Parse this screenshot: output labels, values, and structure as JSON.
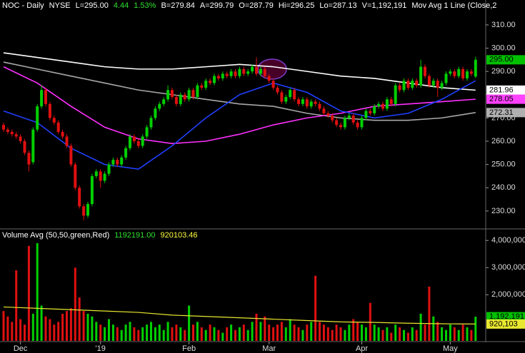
{
  "header": [
    "NOC - Daily",
    "NYSE",
    "L=295.00",
    "4.44",
    "1.53%",
    "B=279.84",
    "A=299.79",
    "O=287.79",
    "Hi=296.25",
    "Lo=287.13",
    "V=1,192,191",
    "Mov Avg 1 Line (Close,2"
  ],
  "chart_data": [
    {
      "type": "candlestick",
      "up_color": "#00d000",
      "down_color": "#e01010",
      "open": [
        267,
        265,
        264,
        263,
        262,
        260,
        255,
        251,
        265,
        275,
        282,
        276,
        270,
        268,
        264,
        262,
        258,
        250,
        240,
        232,
        228,
        233,
        245,
        247,
        243,
        246,
        250,
        252,
        250,
        253,
        257,
        262,
        260,
        258,
        262,
        266,
        270,
        274,
        276,
        278,
        282,
        279,
        276,
        280,
        278,
        282,
        279,
        284,
        283,
        286,
        285,
        288,
        287,
        289,
        288,
        290,
        288,
        291,
        289,
        290,
        292,
        289,
        291,
        288,
        286,
        283,
        281,
        277,
        279,
        282,
        278,
        276,
        278,
        275,
        277,
        276,
        274,
        272,
        271,
        269,
        267,
        266,
        270,
        271,
        268,
        266,
        270,
        273,
        272,
        275,
        276,
        274,
        278,
        276,
        284,
        282,
        286,
        283,
        286,
        284,
        292,
        288,
        284,
        286,
        283,
        285,
        289,
        290,
        288,
        291,
        287,
        290,
        287.79
      ],
      "high": [
        268,
        266,
        265,
        264,
        263,
        261,
        256,
        266,
        276,
        284,
        283,
        277,
        271,
        269,
        265,
        263,
        259,
        251,
        241,
        233,
        234,
        246,
        248,
        248,
        247,
        251,
        253,
        253,
        254,
        258,
        263,
        263,
        261,
        263,
        267,
        271,
        275,
        277,
        279,
        284,
        283,
        280,
        281,
        281,
        283,
        283,
        285,
        285,
        287,
        287,
        289,
        289,
        290,
        290,
        291,
        291,
        292,
        292,
        291,
        293,
        296,
        292,
        292,
        289,
        287,
        284,
        282,
        280,
        283,
        283,
        279,
        279,
        279,
        278,
        278,
        277,
        275,
        273,
        272,
        270,
        268,
        271,
        272,
        272,
        269,
        271,
        274,
        274,
        276,
        277,
        277,
        279,
        279,
        285,
        285,
        287,
        287,
        287,
        287,
        295,
        293,
        289,
        287,
        287,
        286,
        290,
        291,
        291,
        292,
        292,
        291,
        291,
        296.25
      ],
      "low": [
        264,
        263,
        262,
        261,
        259,
        254,
        247,
        250,
        264,
        274,
        275,
        269,
        267,
        263,
        261,
        257,
        249,
        239,
        231,
        226,
        227,
        232,
        244,
        240,
        242,
        245,
        249,
        249,
        249,
        252,
        256,
        259,
        257,
        257,
        261,
        265,
        269,
        273,
        275,
        277,
        278,
        275,
        275,
        277,
        277,
        278,
        278,
        282,
        282,
        284,
        284,
        286,
        286,
        287,
        287,
        287,
        287,
        288,
        288,
        289,
        288,
        288,
        287,
        285,
        282,
        280,
        276,
        276,
        278,
        277,
        275,
        275,
        274,
        274,
        275,
        273,
        271,
        270,
        268,
        266,
        265,
        265,
        269,
        267,
        265,
        265,
        269,
        271,
        271,
        274,
        273,
        273,
        275,
        275,
        281,
        281,
        282,
        282,
        283,
        283,
        287,
        283,
        283,
        279,
        282,
        284,
        288,
        287,
        287,
        286,
        286,
        288,
        287.13
      ],
      "close": [
        265,
        264,
        263,
        262,
        260,
        255,
        250,
        265,
        275,
        282,
        276,
        270,
        268,
        264,
        262,
        258,
        250,
        240,
        232,
        228,
        233,
        245,
        247,
        243,
        246,
        250,
        252,
        250,
        253,
        257,
        262,
        260,
        258,
        262,
        266,
        270,
        274,
        276,
        278,
        282,
        279,
        276,
        280,
        278,
        282,
        279,
        284,
        283,
        286,
        285,
        288,
        287,
        289,
        288,
        290,
        288,
        291,
        289,
        290,
        292,
        289,
        291,
        288,
        286,
        283,
        281,
        277,
        279,
        282,
        278,
        276,
        278,
        275,
        277,
        276,
        274,
        272,
        271,
        269,
        267,
        266,
        270,
        271,
        268,
        266,
        270,
        273,
        272,
        275,
        276,
        274,
        278,
        276,
        284,
        282,
        286,
        283,
        286,
        284,
        292,
        288,
        284,
        286,
        283,
        285,
        289,
        290,
        288,
        291,
        287,
        290,
        289,
        295
      ],
      "ylim": [
        222.6,
        320.7
      ],
      "yticks": [
        {
          "value": 230,
          "label": "230.00"
        },
        {
          "value": 240,
          "label": "240.00"
        },
        {
          "value": 250,
          "label": "250.00"
        },
        {
          "value": 260,
          "label": "260.00"
        },
        {
          "value": 270,
          "label": "270.00"
        },
        {
          "value": 280,
          "label": "280.00"
        },
        {
          "value": 290,
          "label": "290.00"
        },
        {
          "value": 300,
          "label": "300.00"
        },
        {
          "value": 310,
          "label": "310.00"
        }
      ],
      "ma_x": [
        0,
        8,
        16,
        24,
        32,
        40,
        48,
        56,
        64,
        72,
        80,
        88,
        96,
        104,
        112
      ],
      "moving_averages": [
        {
          "color": "#ffffff",
          "values": [
            298,
            296,
            294,
            292,
            291,
            291,
            292,
            293,
            292,
            290,
            288,
            287,
            285,
            283,
            281.96
          ]
        },
        {
          "color": "#a8a8a8",
          "values": [
            294,
            291,
            288,
            285,
            282,
            280,
            278,
            276,
            275,
            272,
            270,
            269,
            269,
            270,
            272.31
          ]
        },
        {
          "color": "#ff30ff",
          "values": [
            292,
            285,
            275,
            266,
            261,
            259,
            260,
            263,
            267,
            270,
            272,
            275,
            276,
            277,
            278.05
          ]
        },
        {
          "color": "#2040ff",
          "values": [
            273,
            268,
            257,
            250,
            248,
            258,
            270,
            280,
            285,
            281,
            273,
            270,
            272,
            278,
            286
          ]
        }
      ],
      "last_labels": [
        {
          "value": 295,
          "label": "295.00",
          "color": "#00c000"
        },
        {
          "value": 281.96,
          "label": "281.96",
          "color": "#ffffff"
        },
        {
          "value": 278.05,
          "label": "278.05",
          "color": "#ff40ff"
        },
        {
          "value": 272.31,
          "label": "272.31",
          "color": "#b0b0b0"
        }
      ]
    },
    {
      "type": "bar",
      "title": "Volume Avg (50,50,green,Red)",
      "stats": [
        "1192191.00",
        "920103.46"
      ],
      "categories": [
        null,
        null,
        null,
        null,
        "Dec",
        null,
        null,
        null,
        null,
        null,
        null,
        null,
        null,
        null,
        null,
        null,
        null,
        null,
        null,
        null,
        null,
        null,
        null,
        "'19",
        null,
        null,
        null,
        null,
        null,
        null,
        null,
        null,
        null,
        null,
        null,
        null,
        null,
        null,
        null,
        null,
        null,
        null,
        null,
        null,
        "Feb",
        null,
        null,
        null,
        null,
        null,
        null,
        null,
        null,
        null,
        null,
        null,
        null,
        null,
        null,
        null,
        null,
        null,
        null,
        "Mar",
        null,
        null,
        null,
        null,
        null,
        null,
        null,
        null,
        null,
        null,
        null,
        null,
        null,
        null,
        null,
        null,
        null,
        null,
        null,
        null,
        null,
        "Apr",
        null,
        null,
        null,
        null,
        null,
        null,
        null,
        null,
        null,
        null,
        null,
        null,
        null,
        null,
        null,
        null,
        null,
        null,
        null,
        null,
        "May",
        null,
        null,
        null,
        null,
        null,
        null
      ],
      "values": [
        1400000,
        1200000,
        1000000,
        2900000,
        1100000,
        900000,
        3800000,
        1300000,
        3900000,
        1600000,
        1200000,
        1100000,
        900000,
        1000000,
        1300000,
        1400000,
        1500000,
        3000000,
        1900000,
        1400000,
        1300000,
        1200000,
        1000000,
        900000,
        800000,
        1100000,
        900000,
        800000,
        700000,
        900000,
        1000000,
        800000,
        700000,
        800000,
        900000,
        1000000,
        800000,
        900000,
        700000,
        1000000,
        800000,
        900000,
        800000,
        700000,
        1600000,
        900000,
        1000000,
        800000,
        700000,
        900000,
        800000,
        700000,
        600000,
        800000,
        900000,
        700000,
        800000,
        900000,
        700000,
        1000000,
        1300000,
        1000000,
        1200000,
        900000,
        800000,
        900000,
        1000000,
        800000,
        1100000,
        900000,
        800000,
        700000,
        900000,
        1000000,
        2700000,
        1000000,
        900000,
        800000,
        700000,
        900000,
        800000,
        700000,
        900000,
        1100000,
        1000000,
        900000,
        800000,
        1700000,
        900000,
        800000,
        700000,
        800000,
        600000,
        900000,
        800000,
        700000,
        600000,
        800000,
        700000,
        1300000,
        900000,
        2300000,
        1200000,
        1000000,
        800000,
        700000,
        900000,
        800000,
        700000,
        900000,
        800000,
        700000,
        1192191
      ],
      "avg_color": "#e8e830",
      "avg_x": [
        0,
        8,
        16,
        24,
        32,
        40,
        48,
        56,
        64,
        72,
        80,
        88,
        96,
        104,
        112
      ],
      "avg_values": [
        1550000,
        1500000,
        1450000,
        1400000,
        1350000,
        1250000,
        1200000,
        1150000,
        1100000,
        1050000,
        1000000,
        980000,
        950000,
        930000,
        920103.46
      ],
      "ylim": [
        300000,
        4400000
      ],
      "yticks": [
        {
          "value": 2000000,
          "label": "2,000,000"
        },
        {
          "value": 3000000,
          "label": "3,000,000"
        },
        {
          "value": 4000000,
          "label": "4,000,000"
        }
      ],
      "last_labels": [
        {
          "value": 1192191,
          "label": "1,192,191",
          "color": "#00c000"
        },
        {
          "value": 920103.46,
          "label": "920,103",
          "color": "#e8e830"
        }
      ]
    }
  ]
}
